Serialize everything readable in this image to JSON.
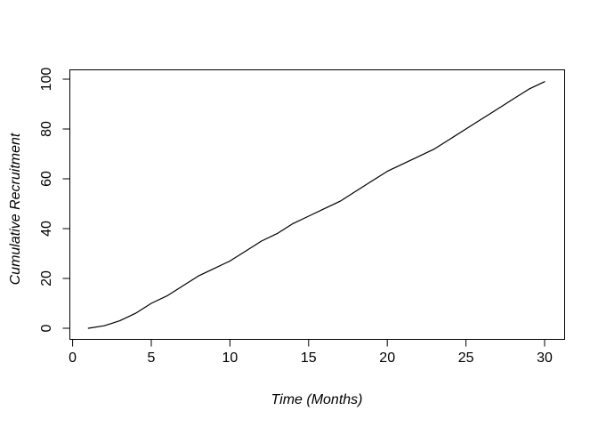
{
  "chart_data": {
    "type": "line",
    "title": "",
    "xlabel": "Time (Months)",
    "ylabel": "Cumulative Recruitment",
    "x": [
      1,
      2,
      3,
      4,
      5,
      6,
      7,
      8,
      9,
      10,
      11,
      12,
      13,
      14,
      15,
      16,
      17,
      18,
      19,
      20,
      21,
      22,
      23,
      24,
      25,
      26,
      27,
      28,
      29,
      30
    ],
    "values": [
      0,
      1,
      3,
      6,
      10,
      13,
      17,
      21,
      24,
      27,
      31,
      35,
      38,
      42,
      45,
      48,
      51,
      55,
      59,
      63,
      66,
      69,
      72,
      76,
      80,
      84,
      88,
      92,
      96,
      99
    ],
    "x_ticks": [
      0,
      5,
      10,
      15,
      20,
      25,
      30
    ],
    "y_ticks": [
      0,
      20,
      40,
      60,
      80,
      100
    ],
    "xlim": [
      -0.2,
      31.2
    ],
    "ylim": [
      -4,
      104
    ],
    "line_color": "#000000",
    "box_color": "#000000",
    "background": "#ffffff",
    "grid": false,
    "legend": "none"
  }
}
